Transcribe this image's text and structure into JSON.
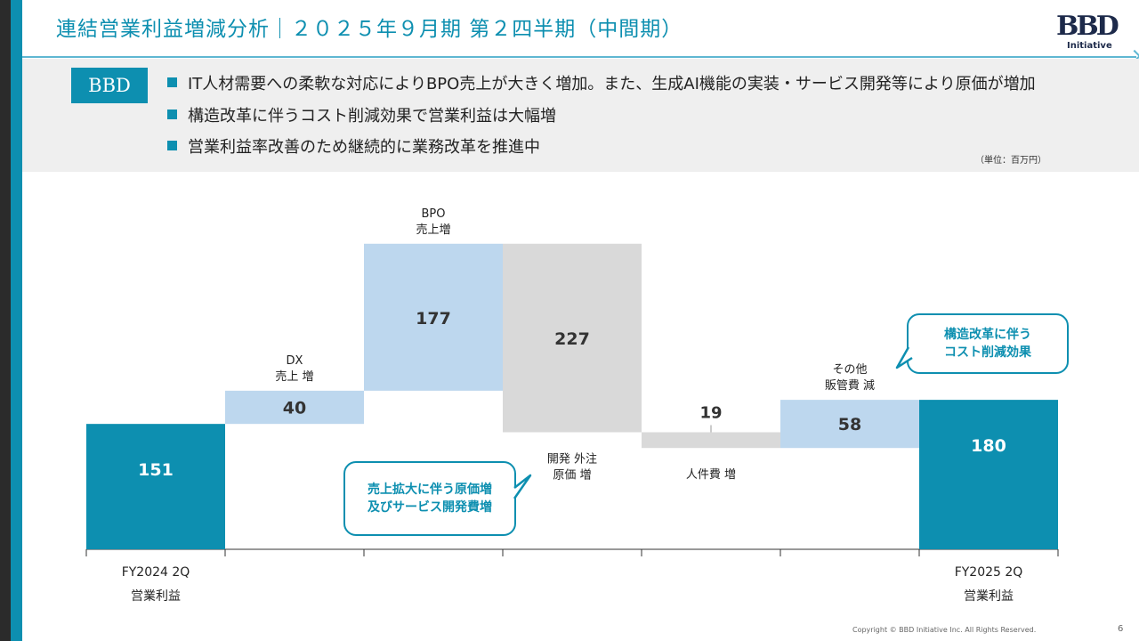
{
  "header": {
    "title": "連結営業利益増減分析｜２０２５年９月期 第２四半期（中間期）",
    "logo_text": "BBD",
    "logo_sub": "Initiative"
  },
  "summary": {
    "badge": "BBD",
    "bullets": [
      "IT人材需要への柔軟な対応によりBPO売上が大きく増加。また、生成AI機能の実装・サービス開発等により原価が増加",
      "構造改革に伴うコスト削減効果で営業利益は大幅増",
      "営業利益率改善のため継続的に業務改革を推進中"
    ],
    "unit": "（単位：百万円）"
  },
  "callouts": {
    "cost": "売上拡大に伴う原価増\n及びサービス開発費増",
    "restructure": "構造改革に伴う\nコスト削減効果"
  },
  "colors": {
    "teal": "#0d8fb0",
    "light_blue": "#bdd7ee",
    "gray": "#d9d9d9"
  },
  "chart_data": {
    "type": "waterfall",
    "steps": [
      {
        "label_lines": [],
        "value": 151,
        "kind": "total",
        "cat_lines": [
          "FY2024 2Q",
          "営業利益"
        ]
      },
      {
        "label_lines": [
          "DX",
          "売上 増"
        ],
        "value": 40,
        "kind": "increase"
      },
      {
        "label_lines": [
          "BPO",
          "売上増"
        ],
        "value": 177,
        "kind": "increase"
      },
      {
        "label_lines": [
          "開発 外注",
          "原価 増"
        ],
        "value": -227,
        "kind": "decrease"
      },
      {
        "label_lines": [
          "人件費 増"
        ],
        "value": -19,
        "kind": "decrease"
      },
      {
        "label_lines": [
          "その他",
          "販管費 減"
        ],
        "value": 58,
        "kind": "increase"
      },
      {
        "label_lines": [],
        "value": 180,
        "kind": "total",
        "cat_lines": [
          "FY2025 2Q",
          "営業利益"
        ]
      }
    ],
    "display_values": [
      "151",
      "40",
      "177",
      "227",
      "19",
      "58",
      "180"
    ]
  },
  "footer": {
    "copyright": "Copyright © BBD Initiative Inc. All Rights Reserved.",
    "page": "6"
  }
}
